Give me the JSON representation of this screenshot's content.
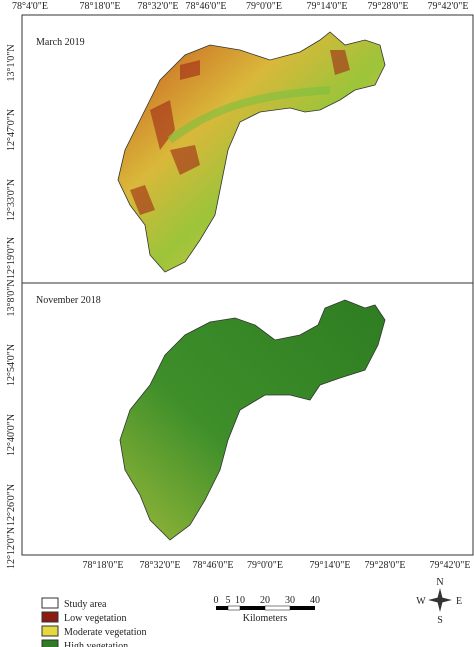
{
  "top_axis": [
    "78°4'0\"E",
    "78°18'0\"E",
    "78°32'0\"E",
    "78°46'0\"E",
    "79°0'0\"E",
    "79°14'0\"E",
    "79°28'0\"E",
    "79°42'0\"E"
  ],
  "bottom_axis": [
    "78°18'0\"E",
    "78°32'0\"E",
    "78°46'0\"E",
    "79°0'0\"E",
    "79°14'0\"E",
    "79°28'0\"E",
    "79°42'0\"E"
  ],
  "panels": [
    {
      "label": "March 2019",
      "lat_axis": [
        "13°1'0\"N",
        "12°47'0\"N",
        "12°33'0\"N",
        "12°19'0\"N"
      ]
    },
    {
      "label": "November 2018",
      "lat_axis": [
        "13°8'0\"N",
        "12°54'0\"N",
        "12°40'0\"N",
        "12°26'0\"N",
        "12°12'0\"N"
      ]
    }
  ],
  "legend": [
    "Study area",
    "Low vegetation",
    "Moderate vegetation",
    "High vegetation"
  ],
  "scale": {
    "ticks": [
      "0",
      "5",
      "10",
      "20",
      "30",
      "40"
    ],
    "unit": "Kilometers"
  },
  "compass": {
    "n": "N",
    "e": "E",
    "s": "S",
    "w": "W"
  }
}
